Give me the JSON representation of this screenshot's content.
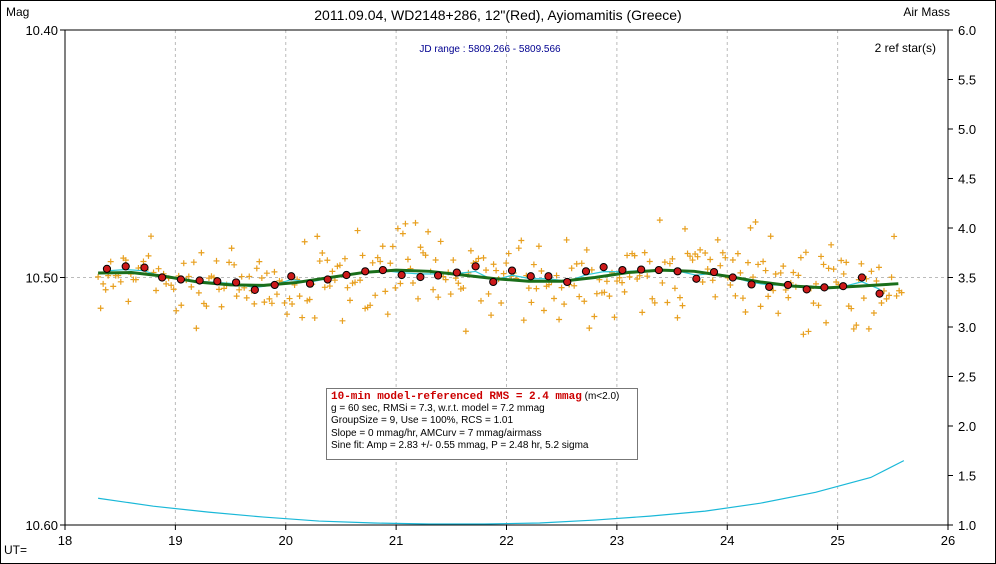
{
  "chart_data": {
    "type": "scatter",
    "title": "2011.09.04, WD2148+286, 12\"(Red), Ayiomamitis (Greece)",
    "ylabel_left": "Mag",
    "ylabel_right": "Air Mass",
    "xlabel": "UT=",
    "jd_range": "JD range : 5809.266 - 5809.566",
    "ref_stars": "2 ref star(s)",
    "xlim": [
      18,
      26
    ],
    "ylim_left": [
      10.6,
      10.4
    ],
    "ylim_right": [
      1.0,
      6.0
    ],
    "x_ticks": [
      "18",
      "19",
      "20",
      "21",
      "22",
      "23",
      "24",
      "25",
      "26"
    ],
    "y_left_ticks": [
      "10.40",
      "10.50",
      "10.60"
    ],
    "y_right_ticks": [
      "1.0",
      "1.5",
      "2.0",
      "2.5",
      "3.0",
      "3.5",
      "4.0",
      "4.5",
      "5.0",
      "5.5",
      "6.0"
    ],
    "grid": true,
    "colors": {
      "raw_points": "#e8a020",
      "group_means": "#cc1a1a",
      "running_mean": "#2ec8d8",
      "model": "#1a6e1a",
      "airmass": "#1ab8d8",
      "jd_text": "#000090"
    },
    "group_means": [
      {
        "x": 18.38,
        "y": 10.4965
      },
      {
        "x": 18.55,
        "y": 10.4955
      },
      {
        "x": 18.72,
        "y": 10.496
      },
      {
        "x": 18.88,
        "y": 10.5
      },
      {
        "x": 19.05,
        "y": 10.5008
      },
      {
        "x": 19.22,
        "y": 10.5012
      },
      {
        "x": 19.38,
        "y": 10.5015
      },
      {
        "x": 19.55,
        "y": 10.502
      },
      {
        "x": 19.72,
        "y": 10.505
      },
      {
        "x": 19.9,
        "y": 10.503
      },
      {
        "x": 20.05,
        "y": 10.4995
      },
      {
        "x": 20.22,
        "y": 10.5025
      },
      {
        "x": 20.38,
        "y": 10.5008
      },
      {
        "x": 20.55,
        "y": 10.499
      },
      {
        "x": 20.72,
        "y": 10.4975
      },
      {
        "x": 20.88,
        "y": 10.497
      },
      {
        "x": 21.05,
        "y": 10.499
      },
      {
        "x": 21.22,
        "y": 10.4998
      },
      {
        "x": 21.38,
        "y": 10.4992
      },
      {
        "x": 21.55,
        "y": 10.498
      },
      {
        "x": 21.72,
        "y": 10.4955
      },
      {
        "x": 21.88,
        "y": 10.5018
      },
      {
        "x": 22.05,
        "y": 10.4972
      },
      {
        "x": 22.22,
        "y": 10.4995
      },
      {
        "x": 22.38,
        "y": 10.4995
      },
      {
        "x": 22.55,
        "y": 10.5018
      },
      {
        "x": 22.72,
        "y": 10.4975
      },
      {
        "x": 22.88,
        "y": 10.4958
      },
      {
        "x": 23.05,
        "y": 10.497
      },
      {
        "x": 23.22,
        "y": 10.4968
      },
      {
        "x": 23.38,
        "y": 10.497
      },
      {
        "x": 23.55,
        "y": 10.4975
      },
      {
        "x": 23.72,
        "y": 10.5005
      },
      {
        "x": 23.88,
        "y": 10.4978
      },
      {
        "x": 24.05,
        "y": 10.5
      },
      {
        "x": 24.22,
        "y": 10.5028
      },
      {
        "x": 24.38,
        "y": 10.5038
      },
      {
        "x": 24.55,
        "y": 10.503
      },
      {
        "x": 24.72,
        "y": 10.5048
      },
      {
        "x": 24.88,
        "y": 10.504
      },
      {
        "x": 25.05,
        "y": 10.5035
      },
      {
        "x": 25.22,
        "y": 10.5
      },
      {
        "x": 25.38,
        "y": 10.5065
      }
    ],
    "model_curve": [
      {
        "x": 18.3,
        "y": 10.4982
      },
      {
        "x": 18.6,
        "y": 10.498
      },
      {
        "x": 18.9,
        "y": 10.4995
      },
      {
        "x": 19.2,
        "y": 10.5018
      },
      {
        "x": 19.5,
        "y": 10.503
      },
      {
        "x": 19.8,
        "y": 10.5032
      },
      {
        "x": 20.1,
        "y": 10.502
      },
      {
        "x": 20.4,
        "y": 10.5
      },
      {
        "x": 20.7,
        "y": 10.498
      },
      {
        "x": 21.0,
        "y": 10.497
      },
      {
        "x": 21.3,
        "y": 10.4975
      },
      {
        "x": 21.6,
        "y": 10.499
      },
      {
        "x": 21.9,
        "y": 10.5005
      },
      {
        "x": 22.2,
        "y": 10.5015
      },
      {
        "x": 22.5,
        "y": 10.5015
      },
      {
        "x": 22.8,
        "y": 10.5
      },
      {
        "x": 23.1,
        "y": 10.498
      },
      {
        "x": 23.4,
        "y": 10.497
      },
      {
        "x": 23.7,
        "y": 10.4975
      },
      {
        "x": 24.0,
        "y": 10.4995
      },
      {
        "x": 24.3,
        "y": 10.5018
      },
      {
        "x": 24.6,
        "y": 10.5035
      },
      {
        "x": 24.9,
        "y": 10.5042
      },
      {
        "x": 25.2,
        "y": 10.5035
      },
      {
        "x": 25.55,
        "y": 10.5025
      }
    ],
    "airmass_curve": [
      {
        "x": 18.3,
        "am": 1.27
      },
      {
        "x": 18.8,
        "am": 1.19
      },
      {
        "x": 19.3,
        "am": 1.13
      },
      {
        "x": 19.8,
        "am": 1.08
      },
      {
        "x": 20.3,
        "am": 1.04
      },
      {
        "x": 20.8,
        "am": 1.02
      },
      {
        "x": 21.3,
        "am": 1.01
      },
      {
        "x": 21.8,
        "am": 1.01
      },
      {
        "x": 22.3,
        "am": 1.02
      },
      {
        "x": 22.8,
        "am": 1.05
      },
      {
        "x": 23.3,
        "am": 1.09
      },
      {
        "x": 23.8,
        "am": 1.14
      },
      {
        "x": 24.3,
        "am": 1.22
      },
      {
        "x": 24.8,
        "am": 1.33
      },
      {
        "x": 25.3,
        "am": 1.48
      },
      {
        "x": 25.6,
        "am": 1.65
      }
    ],
    "raw_scatter": {
      "x_start": 18.3,
      "x_end": 25.58,
      "n": 320,
      "center": 10.5,
      "spread": 0.014
    },
    "stats": {
      "rms_line": "10-min model-referenced RMS = 2.4 mmag",
      "rms_note": "(m<2.0)",
      "line2": "g = 60 sec, RMSi = 7.3, w.r.t. model = 7.2 mmag",
      "line3": "GroupSize = 9, Use = 100%, RCS = 1.01",
      "line4": "Slope = 0 mmag/hr, AMCurv = 7 mmag/airmass",
      "line5": "Sine fit: Amp = 2.83 +/- 0.55 mmag, P = 2.48 hr, 5.2 sigma"
    }
  }
}
